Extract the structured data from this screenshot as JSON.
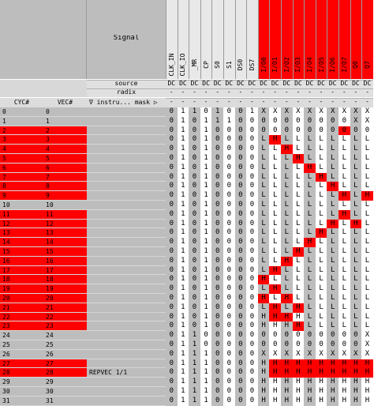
{
  "header": {
    "signal_title": "Signal",
    "source_label": "source",
    "radix_label": "radix",
    "cyc_label": "CYC#",
    "vec_label": "VEC#",
    "instr_label": "∇ instru... mask ▷"
  },
  "signals": [
    {
      "name": "CLK_IN",
      "source": "DC",
      "radix": "-",
      "mask": "-",
      "highlight": false
    },
    {
      "name": "CLK_IO",
      "source": "DC",
      "radix": "-",
      "mask": "-",
      "highlight": false
    },
    {
      "name": "_MR",
      "source": "DC",
      "radix": "-",
      "mask": "-",
      "highlight": false
    },
    {
      "name": "CP",
      "source": "DC",
      "radix": "-",
      "mask": "-",
      "highlight": false
    },
    {
      "name": "S0",
      "source": "DC",
      "radix": "-",
      "mask": "-",
      "highlight": false
    },
    {
      "name": "S1",
      "source": "DC",
      "radix": "-",
      "mask": "-",
      "highlight": false
    },
    {
      "name": "DS0",
      "source": "DC",
      "radix": "-",
      "mask": "-",
      "highlight": false
    },
    {
      "name": "DS7",
      "source": "DC",
      "radix": "-",
      "mask": "-",
      "highlight": false
    },
    {
      "name": "I/O0",
      "source": "DC",
      "radix": "-",
      "mask": "-",
      "highlight": true
    },
    {
      "name": "I/O1",
      "source": "DC",
      "radix": "-",
      "mask": "-",
      "highlight": true
    },
    {
      "name": "I/O2",
      "source": "DC",
      "radix": "-",
      "mask": "-",
      "highlight": true
    },
    {
      "name": "I/O3",
      "source": "DC",
      "radix": "-",
      "mask": "-",
      "highlight": true
    },
    {
      "name": "I/O4",
      "source": "DC",
      "radix": "-",
      "mask": "-",
      "highlight": true
    },
    {
      "name": "I/O5",
      "source": "DC",
      "radix": "-",
      "mask": "-",
      "highlight": true
    },
    {
      "name": "I/O6",
      "source": "DC",
      "radix": "-",
      "mask": "-",
      "highlight": true
    },
    {
      "name": "I/O7",
      "source": "DC",
      "radix": "-",
      "mask": "-",
      "highlight": true
    },
    {
      "name": "Q0",
      "source": "DC",
      "radix": "-",
      "mask": "-",
      "highlight": true
    },
    {
      "name": "Q7",
      "source": "DC",
      "radix": "-",
      "mask": "-",
      "highlight": true
    }
  ],
  "rows": [
    {
      "cyc": "0",
      "vec": "0",
      "instr": "",
      "red": false,
      "values": "01101001XXXXXXXXXX",
      "fails": []
    },
    {
      "cyc": "1",
      "vec": "1",
      "instr": "",
      "red": false,
      "values": "0101110000000000XX",
      "fails": []
    },
    {
      "cyc": "2",
      "vec": "2",
      "instr": "",
      "red": true,
      "values": "010100000000000000",
      "fails": [
        15
      ]
    },
    {
      "cyc": "3",
      "vec": "3",
      "instr": "",
      "red": true,
      "values": "01010000LHLLLLLLLL",
      "fails": [
        9
      ]
    },
    {
      "cyc": "4",
      "vec": "4",
      "instr": "",
      "red": true,
      "values": "01010000LLHLLLLLLL",
      "fails": [
        10
      ]
    },
    {
      "cyc": "5",
      "vec": "5",
      "instr": "",
      "red": true,
      "values": "01010000LLLHLLLLLL",
      "fails": [
        11
      ]
    },
    {
      "cyc": "6",
      "vec": "6",
      "instr": "",
      "red": true,
      "values": "01010000LLLLHLLLLL",
      "fails": [
        12
      ]
    },
    {
      "cyc": "7",
      "vec": "7",
      "instr": "",
      "red": true,
      "values": "01010000LLLLLHLLLL",
      "fails": [
        13
      ]
    },
    {
      "cyc": "8",
      "vec": "8",
      "instr": "",
      "red": true,
      "values": "01010000LLLLLLHLLL",
      "fails": [
        14
      ]
    },
    {
      "cyc": "9",
      "vec": "9",
      "instr": "",
      "red": true,
      "values": "01010000LLLLLLLHLH",
      "fails": [
        15,
        17
      ]
    },
    {
      "cyc": "10",
      "vec": "10",
      "instr": "",
      "red": false,
      "values": "01010000LLLLLLLLLL",
      "fails": []
    },
    {
      "cyc": "11",
      "vec": "11",
      "instr": "",
      "red": true,
      "values": "01010000LLLLLLLHLL",
      "fails": [
        15
      ]
    },
    {
      "cyc": "12",
      "vec": "12",
      "instr": "",
      "red": true,
      "values": "01010000LLLLLLHLHL",
      "fails": [
        14,
        16
      ]
    },
    {
      "cyc": "13",
      "vec": "13",
      "instr": "",
      "red": true,
      "values": "01010000LLLLLHLLLL",
      "fails": [
        13
      ]
    },
    {
      "cyc": "14",
      "vec": "14",
      "instr": "",
      "red": true,
      "values": "01010000LLLLHLLLLL",
      "fails": [
        12
      ]
    },
    {
      "cyc": "15",
      "vec": "15",
      "instr": "",
      "red": true,
      "values": "01010000LLLHLLLLLL",
      "fails": [
        11
      ]
    },
    {
      "cyc": "16",
      "vec": "16",
      "instr": "",
      "red": true,
      "values": "01010000LLHLLLLLLL",
      "fails": [
        10
      ]
    },
    {
      "cyc": "17",
      "vec": "17",
      "instr": "",
      "red": true,
      "values": "01010000LHLLLLLLLL",
      "fails": [
        9
      ]
    },
    {
      "cyc": "18",
      "vec": "18",
      "instr": "",
      "red": true,
      "values": "01010000HLLLLLLLLL",
      "fails": [
        8
      ]
    },
    {
      "cyc": "19",
      "vec": "19",
      "instr": "",
      "red": true,
      "values": "01010000LHLLLLLLLL",
      "fails": [
        9
      ]
    },
    {
      "cyc": "20",
      "vec": "20",
      "instr": "",
      "red": true,
      "values": "01010000HLHLLLLLLL",
      "fails": [
        8,
        10
      ]
    },
    {
      "cyc": "21",
      "vec": "21",
      "instr": "",
      "red": true,
      "values": "01010000LHLHLLLLLL",
      "fails": [
        9,
        11
      ]
    },
    {
      "cyc": "22",
      "vec": "22",
      "instr": "",
      "red": true,
      "values": "01010000HHHHLLLLLL",
      "fails": [
        9,
        10
      ]
    },
    {
      "cyc": "23",
      "vec": "23",
      "instr": "",
      "red": true,
      "values": "01010000HHHHLLLLLL",
      "fails": [
        11
      ]
    },
    {
      "cyc": "24",
      "vec": "24",
      "instr": "",
      "red": false,
      "values": "01100000000000000X",
      "fails": []
    },
    {
      "cyc": "25",
      "vec": "25",
      "instr": "",
      "red": false,
      "values": "01100000000000000X",
      "fails": []
    },
    {
      "cyc": "26",
      "vec": "26",
      "instr": "",
      "red": false,
      "values": "01110000XXXXXXXXXX",
      "fails": []
    },
    {
      "cyc": "27",
      "vec": "27",
      "instr": "",
      "red": true,
      "values": "01110000HHHHHHHHHH",
      "fails": [
        9,
        10,
        11,
        12,
        13,
        14,
        15,
        16,
        17
      ]
    },
    {
      "cyc": "28",
      "vec": "28",
      "instr": "REPVEC 1/1",
      "red": true,
      "values": "01110000HHHHHHHHHH",
      "fails": [
        9,
        10,
        11,
        12,
        13,
        14,
        15,
        16,
        17
      ]
    },
    {
      "cyc": "29",
      "vec": "29",
      "instr": "",
      "red": false,
      "values": "01110000HHHHHHHHHH",
      "fails": []
    },
    {
      "cyc": "30",
      "vec": "30",
      "instr": "",
      "red": false,
      "values": "01110000HHHHHHHHHH",
      "fails": []
    },
    {
      "cyc": "31",
      "vec": "31",
      "instr": "",
      "red": false,
      "values": "01110000HHHHHHHHHH",
      "fails": []
    }
  ],
  "colors": {
    "fail": "#ff0000",
    "panel": "#bdbdbd",
    "header": "#e8e8e8"
  }
}
